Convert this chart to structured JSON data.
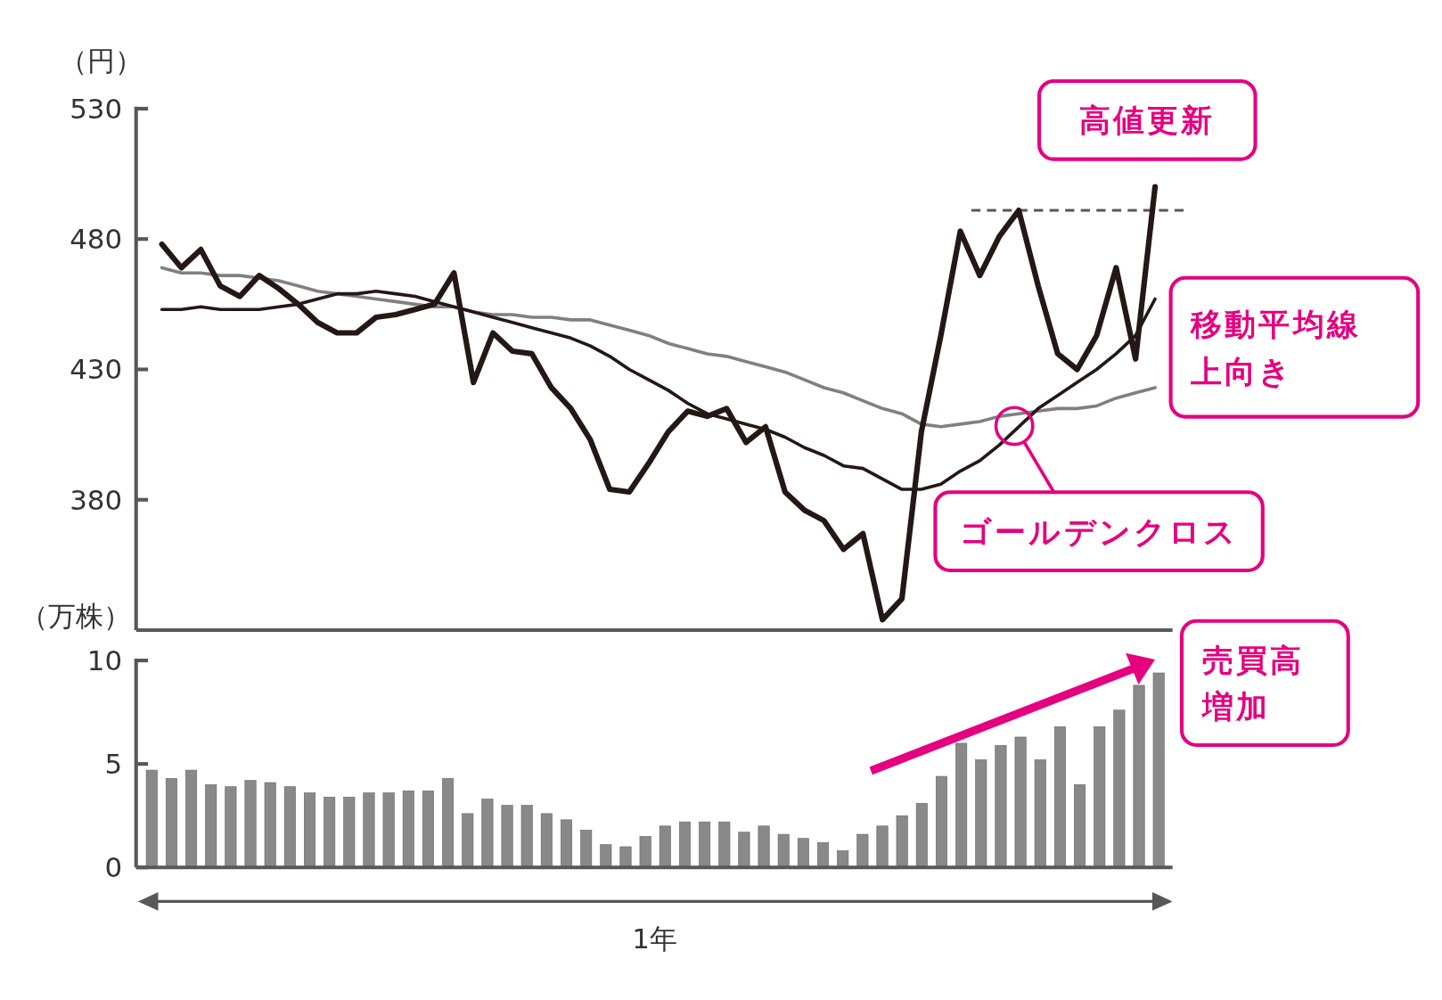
{
  "chart_data": [
    {
      "type": "line",
      "ylabel": "（円）",
      "categories": [
        null,
        null,
        null,
        null,
        null,
        null,
        null,
        null,
        null,
        null,
        null,
        null,
        null,
        null,
        null,
        null,
        null,
        null,
        null,
        null,
        null,
        null,
        null,
        null,
        null,
        null,
        null,
        null,
        null,
        null,
        null,
        null,
        null,
        null,
        null,
        null,
        null,
        null,
        null,
        null,
        null,
        null,
        null,
        null,
        null,
        null,
        null,
        null,
        null,
        null,
        null,
        null
      ],
      "ylim": [
        330,
        530
      ],
      "yticks": [
        380,
        430,
        480,
        530
      ],
      "tick_labels": "y",
      "series": [
        {
          "color": "#231815",
          "values": [
            478,
            469,
            476,
            462,
            458,
            466,
            461,
            455,
            448,
            444,
            444,
            450,
            451,
            453,
            455,
            467,
            425,
            444,
            437,
            436,
            423,
            415,
            403,
            384,
            383,
            394,
            406,
            414,
            412,
            415,
            402,
            408,
            383,
            376,
            372,
            361,
            367,
            334,
            342,
            406,
            443,
            483,
            466,
            481,
            491,
            462,
            436,
            430,
            443,
            469,
            434,
            500
          ]
        },
        {
          "color": "#231815",
          "values": [
            453,
            453,
            454,
            453,
            453,
            453,
            454,
            455,
            457,
            459,
            459,
            460,
            459,
            458,
            456,
            454,
            452,
            450,
            448,
            446,
            444,
            442,
            439,
            435,
            430,
            426,
            422,
            417,
            413,
            411,
            409,
            407,
            404,
            400,
            397,
            393,
            392,
            388,
            384,
            384,
            386,
            391,
            395,
            401,
            408,
            415,
            420,
            425,
            430,
            436,
            443,
            457
          ]
        },
        {
          "color": "#808080",
          "values": [
            469,
            467,
            467,
            466,
            466,
            465,
            464,
            462,
            460,
            459,
            458,
            457,
            456,
            455,
            454,
            454,
            452,
            451,
            451,
            450,
            450,
            449,
            449,
            447,
            445,
            443,
            440,
            438,
            436,
            435,
            433,
            431,
            429,
            426,
            423,
            421,
            418,
            415,
            413,
            409,
            408,
            409,
            410,
            412,
            413,
            414,
            415,
            415,
            416,
            419,
            421,
            423
          ]
        }
      ],
      "ref_lines": [
        {
          "axis": "y",
          "value": 491,
          "color": "#595757",
          "line_style": "dashed"
        }
      ],
      "annotations": [
        "高値更新",
        "移動平均線上向き",
        "ゴールデンクロス"
      ]
    },
    {
      "type": "bar",
      "ylabel": "（万株）",
      "xlabel": "1年",
      "categories": [
        null,
        null,
        null,
        null,
        null,
        null,
        null,
        null,
        null,
        null,
        null,
        null,
        null,
        null,
        null,
        null,
        null,
        null,
        null,
        null,
        null,
        null,
        null,
        null,
        null,
        null,
        null,
        null,
        null,
        null,
        null,
        null,
        null,
        null,
        null,
        null,
        null,
        null,
        null,
        null,
        null,
        null,
        null,
        null,
        null,
        null,
        null,
        null,
        null,
        null,
        null,
        null
      ],
      "ylim": [
        0,
        10
      ],
      "yticks": [
        0,
        5,
        10
      ],
      "tick_labels": "y",
      "color": "#898989",
      "values": [
        4.7,
        4.3,
        4.7,
        4.0,
        3.9,
        4.2,
        4.1,
        3.9,
        3.6,
        3.4,
        3.4,
        3.6,
        3.6,
        3.7,
        3.7,
        4.3,
        2.6,
        3.3,
        3.0,
        3.0,
        2.6,
        2.3,
        1.8,
        1.1,
        1.0,
        1.5,
        2.0,
        2.2,
        2.2,
        2.2,
        1.7,
        2.0,
        1.6,
        1.4,
        1.2,
        0.8,
        1.6,
        2.0,
        2.5,
        3.1,
        4.4,
        6.0,
        5.2,
        5.9,
        6.3,
        5.2,
        6.8,
        4.0,
        6.8,
        7.6,
        8.8,
        9.4
      ],
      "annotations": [
        "売買高増加"
      ]
    }
  ]
}
